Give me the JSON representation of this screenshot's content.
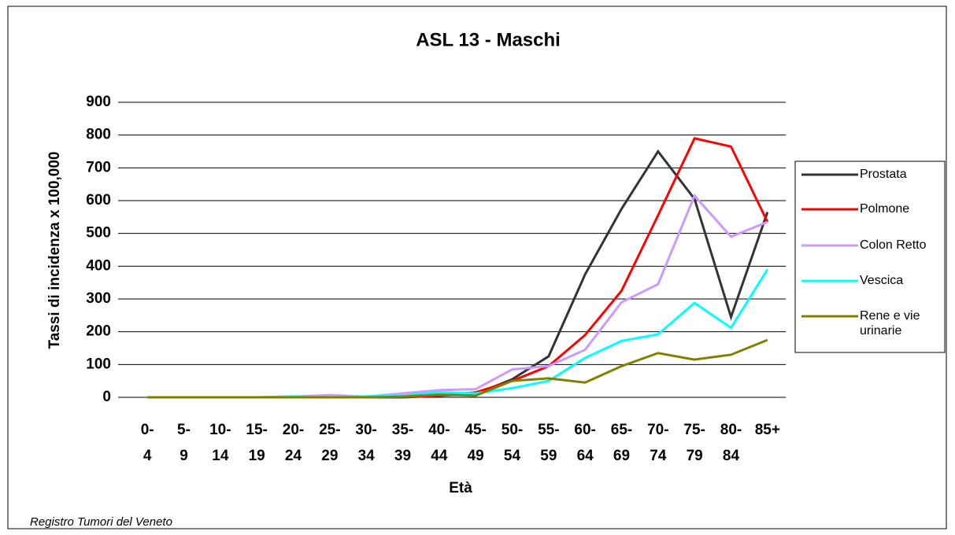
{
  "chart_data": {
    "type": "line",
    "title": "ASL 13 - Maschi",
    "x_label": "Età",
    "y_label": "Tassi di incidenza x 100,000",
    "source": "Registro Tumori del Veneto",
    "categories": [
      "0-4",
      "5-9",
      "10-14",
      "15-19",
      "20-24",
      "25-29",
      "30-34",
      "35-39",
      "40-44",
      "45-49",
      "50-54",
      "55-59",
      "60-64",
      "65-69",
      "70-74",
      "75-79",
      "80-84",
      "85+"
    ],
    "ylim": [
      0,
      900
    ],
    "yticks": [
      0,
      100,
      200,
      300,
      400,
      500,
      600,
      700,
      800,
      900
    ],
    "grid": true,
    "legend": "right",
    "series": [
      {
        "name": "Prostata",
        "color": "#333333",
        "values": [
          0,
          0,
          0,
          0,
          0,
          0,
          0,
          0,
          5,
          10,
          55,
          125,
          375,
          575,
          750,
          605,
          245,
          565
        ]
      },
      {
        "name": "Polmone",
        "color": "#ff0000",
        "values": [
          0,
          0,
          0,
          0,
          0,
          0,
          0,
          2,
          5,
          15,
          50,
          95,
          190,
          325,
          555,
          790,
          765,
          535
        ]
      },
      {
        "name": "Colon Retto",
        "color": "#cc99ff",
        "values": [
          0,
          0,
          0,
          0,
          2,
          7,
          2,
          12,
          22,
          25,
          85,
          95,
          145,
          290,
          345,
          615,
          490,
          535
        ]
      },
      {
        "name": "Vescica",
        "color": "#00ffff",
        "values": [
          0,
          0,
          0,
          0,
          3,
          0,
          3,
          5,
          15,
          12,
          28,
          50,
          120,
          172,
          192,
          288,
          212,
          390
        ]
      },
      {
        "name": "Rene e vie urinarie",
        "color": "#808000",
        "values": [
          0,
          0,
          0,
          0,
          0,
          0,
          0,
          2,
          8,
          5,
          50,
          58,
          45,
          95,
          135,
          115,
          130,
          175
        ]
      }
    ]
  }
}
